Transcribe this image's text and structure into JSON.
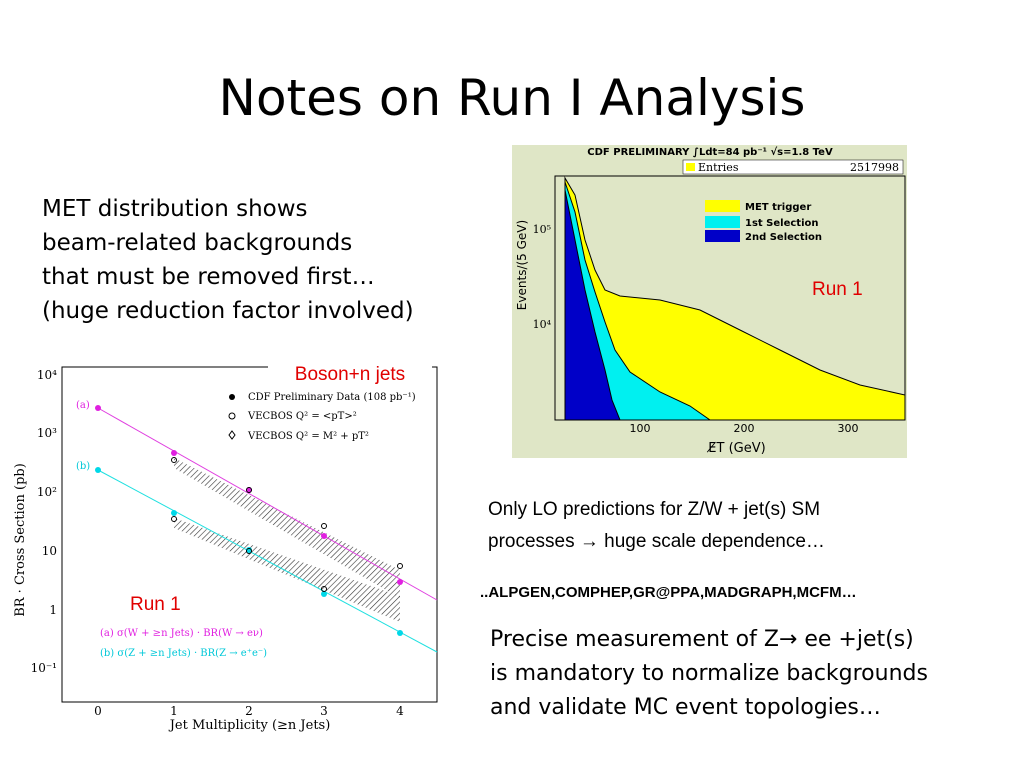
{
  "title": "Notes on  Run I Analysis",
  "text_blocks": {
    "met": [
      "MET distribution shows",
      "beam-related backgrounds",
      "that must be removed first…",
      "(huge reduction factor involved)"
    ],
    "lo": [
      "Only LO predictions for Z/W + jet(s) SM",
      "processes → huge scale dependence…"
    ],
    "generators": "..ALPGEN,COMPHEP,GR@PPA,MADGRAPH,MCFM…",
    "precise": [
      "Precise measurement of Z→ ee +jet(s)",
      "is mandatory to normalize backgrounds",
      "and validate MC event topologies…"
    ]
  },
  "met_plot": {
    "header": "CDF PRELIMINARY ∫Ldt=84 pb⁻¹ √s=1.8 TeV",
    "entries_label": "Entries",
    "entries": "2517998",
    "legend": [
      "MET trigger",
      "1st Selection",
      "2nd Selection"
    ],
    "annotation": "Run 1",
    "y_label": "Events/(5 GeV)",
    "x_label": "E̸T (GeV)",
    "xticks": [
      "100",
      "200",
      "300"
    ],
    "yticks": [
      "10⁵",
      "10⁴"
    ]
  },
  "jets_plot": {
    "annotation_top": "Boson+n jets",
    "annotation": "Run 1",
    "legend": [
      "CDF Preliminary Data (108 pb⁻¹)",
      "VECBOS  Q² = <pT>²",
      "VECBOS  Q² = M² + pT²"
    ],
    "series_labels": [
      "(a)",
      "(b)"
    ],
    "formulas": [
      "(a) σ(W + ≥n Jets) · BR(W → eν)",
      "(b) σ(Z + ≥n Jets) · BR(Z → e⁺e⁻)"
    ],
    "y_label": "BR · Cross Section (pb)",
    "x_label": "Jet Multiplicity (≥n Jets)",
    "xticks": [
      "0",
      "1",
      "2",
      "3",
      "4"
    ],
    "yticks": [
      "10⁴",
      "10³",
      "10²",
      "10",
      "1",
      "10⁻¹"
    ]
  }
}
